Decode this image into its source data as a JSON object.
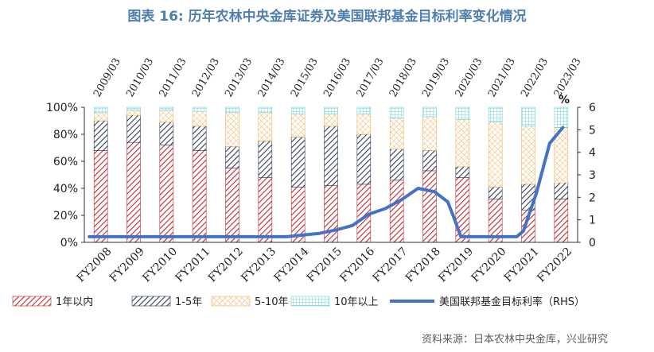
{
  "title": "图表 16: 历年农林中央金库证券及美国联邦基金目标利率变化情况",
  "source": "资料来源：日本农林中央金库，兴业研究",
  "chart_data": {
    "type": "bar",
    "stacked": true,
    "categories": [
      "FY2008",
      "FY2009",
      "FY2010",
      "FY2011",
      "FY2012",
      "FY2013",
      "FY2014",
      "FY2015",
      "FY2016",
      "FY2017",
      "FY2018",
      "FY2019",
      "FY2020",
      "FY2021",
      "FY2022"
    ],
    "series": [
      {
        "name": "1年以内",
        "color": "#c0272d",
        "pattern": "diagonal-hatch",
        "values": [
          68,
          74,
          72,
          68,
          55,
          48,
          41,
          42,
          43,
          46,
          53,
          48,
          32,
          24,
          32
        ]
      },
      {
        "name": "1-5年",
        "color": "#2d3b55",
        "pattern": "diagonal-hatch",
        "values": [
          22,
          20,
          17,
          18,
          16,
          27,
          37,
          44,
          37,
          23,
          15,
          8,
          9,
          19,
          12
        ]
      },
      {
        "name": "5-10年",
        "color": "#f3b25c",
        "pattern": "cross-hatch",
        "values": [
          6,
          4,
          9,
          11,
          25,
          21,
          17,
          9,
          15,
          23,
          25,
          35,
          48,
          43,
          41
        ]
      },
      {
        "name": "10年以上",
        "color": "#6fd6dc",
        "pattern": "grid",
        "values": [
          4,
          2,
          2,
          3,
          4,
          4,
          5,
          5,
          5,
          8,
          7,
          9,
          11,
          14,
          15
        ]
      }
    ],
    "rhs_series": {
      "name": "美国联邦基金目标利率（RHS）",
      "color": "#4472c4",
      "x": [
        0,
        1,
        2,
        3,
        4,
        5,
        6,
        7,
        7.5,
        8,
        8.5,
        9,
        9.5,
        10,
        10.5,
        10.9,
        11.05,
        11.3,
        12,
        12.8,
        13,
        13.2,
        13.6,
        14,
        14.4
      ],
      "values": [
        0.25,
        0.25,
        0.25,
        0.25,
        0.25,
        0.25,
        0.25,
        0.4,
        0.55,
        0.75,
        1.25,
        1.5,
        1.9,
        2.4,
        2.25,
        1.8,
        1.25,
        0.25,
        0.25,
        0.25,
        0.25,
        0.5,
        2.2,
        4.4,
        5.1
      ]
    },
    "ylim_left": [
      0,
      100
    ],
    "yticks_left": [
      "0%",
      "20%",
      "40%",
      "60%",
      "80%",
      "100%"
    ],
    "ylim_right": [
      0,
      6
    ],
    "yticks_right": [
      "0",
      "1",
      "2",
      "3",
      "4",
      "5",
      "6"
    ],
    "right_unit": "%",
    "top_axis_labels": [
      "2009/03",
      "2010/03",
      "2011/03",
      "2012/03",
      "2013/03",
      "2014/03",
      "2015/03",
      "2016/03",
      "2017/03",
      "2018/03",
      "2019/03",
      "2020/03",
      "2021/03",
      "2022/03",
      "2023/03"
    ],
    "legend_position": "bottom"
  }
}
